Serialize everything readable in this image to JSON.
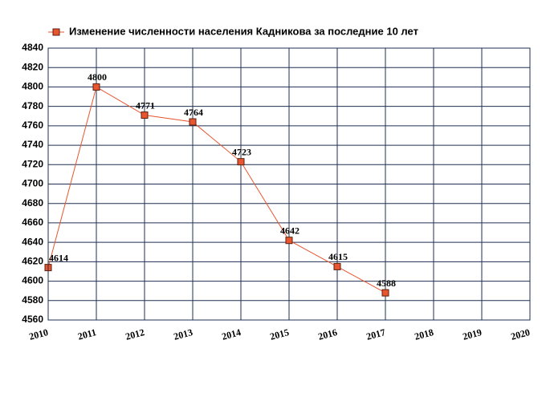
{
  "chart_data": {
    "type": "line",
    "x": [
      2010,
      2011,
      2012,
      2013,
      2014,
      2015,
      2016,
      2017
    ],
    "series": [
      {
        "name": "Изменение численности населения Кадникова за последние 10 лет",
        "color": "#e8552f",
        "values": [
          4614,
          4800,
          4771,
          4764,
          4723,
          4642,
          4615,
          4588
        ]
      }
    ],
    "xlim": [
      2010,
      2020
    ],
    "xticks": [
      2010,
      2011,
      2012,
      2013,
      2014,
      2015,
      2016,
      2017,
      2018,
      2019,
      2020
    ],
    "ylim": [
      4560,
      4840
    ],
    "yticks": [
      4560,
      4580,
      4600,
      4620,
      4640,
      4660,
      4680,
      4700,
      4720,
      4740,
      4760,
      4780,
      4800,
      4820,
      4840
    ],
    "grid": true,
    "legend": "top"
  }
}
